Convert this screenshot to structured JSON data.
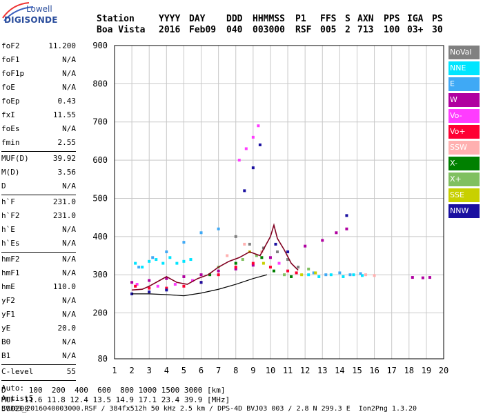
{
  "logo": {
    "brand": "Lowell",
    "product": "DIGISONDE"
  },
  "header": {
    "labels": [
      "Station",
      "YYYY",
      "DAY",
      "DDD",
      "HHMMSS",
      "P1",
      "FFS",
      "S",
      "AXN",
      "PPS",
      "IGA",
      "PS"
    ],
    "values": [
      "Boa Vista",
      "2016",
      "Feb09",
      "040",
      "003000",
      "RSF",
      "005",
      "2",
      "713",
      "100",
      "03+",
      "30"
    ]
  },
  "params": {
    "group1": [
      {
        "k": "foF2",
        "v": "11.200"
      },
      {
        "k": "foF1",
        "v": "N/A"
      },
      {
        "k": "foF1p",
        "v": "N/A"
      },
      {
        "k": "foE",
        "v": "N/A"
      },
      {
        "k": "foEp",
        "v": "0.43"
      },
      {
        "k": "fxI",
        "v": "11.55"
      },
      {
        "k": "foEs",
        "v": "N/A"
      },
      {
        "k": "fmin",
        "v": "2.55"
      }
    ],
    "group2": [
      {
        "k": "MUF(D)",
        "v": "39.92"
      },
      {
        "k": "M(D)",
        "v": "3.56"
      },
      {
        "k": "D",
        "v": "N/A"
      }
    ],
    "group3": [
      {
        "k": "h`F",
        "v": "231.0"
      },
      {
        "k": "h`F2",
        "v": "231.0"
      },
      {
        "k": "h`E",
        "v": "N/A"
      },
      {
        "k": "h`Es",
        "v": "N/A"
      }
    ],
    "group4": [
      {
        "k": "hmF2",
        "v": "N/A"
      },
      {
        "k": "hmF1",
        "v": "N/A"
      },
      {
        "k": "hmE",
        "v": "110.0"
      },
      {
        "k": "yF2",
        "v": "N/A"
      },
      {
        "k": "yF1",
        "v": "N/A"
      },
      {
        "k": "yE",
        "v": "20.0"
      },
      {
        "k": "B0",
        "v": "N/A"
      },
      {
        "k": "B1",
        "v": "N/A"
      }
    ],
    "clevel": {
      "k": "C-level",
      "v": "55"
    },
    "auto": [
      "Auto:",
      "Artist5",
      "500200"
    ]
  },
  "legend": [
    {
      "label": "NoVal",
      "color": "#808080"
    },
    {
      "label": "NNE",
      "color": "#00e5ff"
    },
    {
      "label": "E",
      "color": "#3fa9f5"
    },
    {
      "label": "W",
      "color": "#b000a0"
    },
    {
      "label": "Vo-",
      "color": "#ff3cff"
    },
    {
      "label": "Vo+",
      "color": "#ff0033"
    },
    {
      "label": "SSW",
      "color": "#ffb0b0"
    },
    {
      "label": "X-",
      "color": "#008000"
    },
    {
      "label": "X+",
      "color": "#80c060"
    },
    {
      "label": "SSE",
      "color": "#c8d000"
    },
    {
      "label": "NNW",
      "color": "#1a10a0"
    }
  ],
  "chart_data": {
    "type": "scatter",
    "xlim": [
      1,
      20
    ],
    "ylim": [
      80,
      900
    ],
    "xticks": [
      1,
      2,
      3,
      4,
      5,
      6,
      7,
      8,
      9,
      10,
      11,
      12,
      13,
      14,
      15,
      16,
      17,
      18,
      19,
      20
    ],
    "yticks": [
      80,
      200,
      300,
      400,
      500,
      600,
      700,
      800,
      900
    ],
    "grid": true,
    "series": [
      {
        "name": "NNE",
        "color": "#00e5ff",
        "points": [
          [
            2.2,
            330
          ],
          [
            2.6,
            320
          ],
          [
            3.0,
            335
          ],
          [
            3.4,
            340
          ],
          [
            3.8,
            330
          ],
          [
            4.2,
            345
          ],
          [
            4.6,
            330
          ],
          [
            5.0,
            335
          ],
          [
            5.4,
            340
          ],
          [
            12.2,
            300
          ],
          [
            12.8,
            295
          ],
          [
            13.5,
            300
          ],
          [
            14.2,
            295
          ],
          [
            14.8,
            300
          ],
          [
            15.3,
            298
          ]
        ]
      },
      {
        "name": "E",
        "color": "#3fa9f5",
        "points": [
          [
            2.4,
            320
          ],
          [
            3.2,
            345
          ],
          [
            4.0,
            360
          ],
          [
            5.0,
            385
          ],
          [
            6.0,
            410
          ],
          [
            7.0,
            420
          ],
          [
            12.5,
            305
          ],
          [
            13.2,
            300
          ],
          [
            14.0,
            305
          ],
          [
            14.6,
            300
          ],
          [
            15.2,
            303
          ]
        ]
      },
      {
        "name": "W",
        "color": "#b000a0",
        "points": [
          [
            2.0,
            280
          ],
          [
            3.0,
            285
          ],
          [
            4.0,
            290
          ],
          [
            5.0,
            295
          ],
          [
            6.0,
            300
          ],
          [
            7.0,
            310
          ],
          [
            8.0,
            315
          ],
          [
            9.0,
            325
          ],
          [
            10.0,
            345
          ],
          [
            11.0,
            360
          ],
          [
            12.0,
            375
          ],
          [
            13.0,
            390
          ],
          [
            13.8,
            410
          ],
          [
            14.4,
            420
          ],
          [
            18.2,
            293
          ],
          [
            18.8,
            292
          ],
          [
            19.2,
            293
          ]
        ]
      },
      {
        "name": "Vo-",
        "color": "#ff3cff",
        "points": [
          [
            2.3,
            275
          ],
          [
            3.5,
            270
          ],
          [
            4.5,
            275
          ],
          [
            5.5,
            285
          ],
          [
            8.2,
            600
          ],
          [
            8.6,
            630
          ],
          [
            9.0,
            660
          ],
          [
            9.3,
            690
          ],
          [
            10.5,
            330
          ]
        ]
      },
      {
        "name": "Vo+",
        "color": "#ff0033",
        "points": [
          [
            2.2,
            270
          ],
          [
            3.0,
            265
          ],
          [
            4.0,
            265
          ],
          [
            5.0,
            270
          ],
          [
            6.0,
            280
          ],
          [
            7.0,
            300
          ],
          [
            8.0,
            320
          ],
          [
            9.0,
            330
          ],
          [
            10.0,
            320
          ],
          [
            11.0,
            310
          ],
          [
            11.5,
            305
          ]
        ]
      },
      {
        "name": "SSW",
        "color": "#ffb0b0",
        "points": [
          [
            7.5,
            350
          ],
          [
            8.5,
            380
          ],
          [
            9.5,
            360
          ],
          [
            15.5,
            300
          ],
          [
            16.0,
            298
          ]
        ]
      },
      {
        "name": "X-",
        "color": "#008000",
        "points": [
          [
            6.5,
            300
          ],
          [
            8.0,
            330
          ],
          [
            9.5,
            345
          ],
          [
            10.2,
            310
          ],
          [
            11.2,
            295
          ]
        ]
      },
      {
        "name": "X+",
        "color": "#80c060",
        "points": [
          [
            7.0,
            320
          ],
          [
            8.4,
            340
          ],
          [
            9.2,
            350
          ],
          [
            10.8,
            300
          ],
          [
            12.2,
            315
          ]
        ]
      },
      {
        "name": "SSE",
        "color": "#c8d000",
        "points": [
          [
            8.8,
            360
          ],
          [
            9.6,
            330
          ],
          [
            11.8,
            300
          ],
          [
            12.6,
            305
          ]
        ]
      },
      {
        "name": "NNW",
        "color": "#1a10a0",
        "points": [
          [
            2.0,
            250
          ],
          [
            3.0,
            255
          ],
          [
            4.0,
            260
          ],
          [
            6.0,
            280
          ],
          [
            8.5,
            520
          ],
          [
            9.0,
            580
          ],
          [
            9.4,
            640
          ],
          [
            10.3,
            380
          ],
          [
            11.0,
            360
          ],
          [
            14.4,
            455
          ]
        ]
      },
      {
        "name": "NoVal",
        "color": "#808080",
        "points": [
          [
            8.0,
            400
          ],
          [
            8.8,
            380
          ],
          [
            9.6,
            370
          ],
          [
            10.4,
            360
          ],
          [
            11.0,
            340
          ],
          [
            11.6,
            320
          ]
        ]
      }
    ],
    "trace": {
      "color": "#800020",
      "points": [
        [
          2.0,
          260
        ],
        [
          2.6,
          262
        ],
        [
          3.0,
          270
        ],
        [
          3.6,
          285
        ],
        [
          4.0,
          295
        ],
        [
          4.6,
          280
        ],
        [
          5.2,
          275
        ],
        [
          5.8,
          290
        ],
        [
          6.4,
          300
        ],
        [
          7.0,
          320
        ],
        [
          7.6,
          335
        ],
        [
          8.2,
          345
        ],
        [
          8.8,
          360
        ],
        [
          9.4,
          350
        ],
        [
          10.0,
          400
        ],
        [
          10.2,
          430
        ],
        [
          10.4,
          395
        ],
        [
          10.8,
          365
        ],
        [
          11.2,
          330
        ],
        [
          11.6,
          312
        ]
      ]
    },
    "lines": [
      {
        "color": "#000000",
        "points": [
          [
            2.0,
            250
          ],
          [
            3.0,
            250
          ],
          [
            4.0,
            248
          ],
          [
            5.0,
            245
          ],
          [
            6.0,
            252
          ],
          [
            7.0,
            262
          ],
          [
            8.0,
            275
          ],
          [
            9.0,
            290
          ],
          [
            9.8,
            300
          ]
        ]
      }
    ]
  },
  "footer": {
    "d_line": "D     100  200  400  600  800 1000 1500 3000 [km]",
    "muf_line": "MUF  11.6 11.8 12.4 13.5 14.9 17.1 23.4 39.9 [MHz]",
    "file_line": "BVJ03_2016040003000.RSF / 384fx512h 50 kHz 2.5 km / DPS-4D BVJ03 003 / 2.8 N 299.3 E  Ion2Png 1.3.20"
  }
}
